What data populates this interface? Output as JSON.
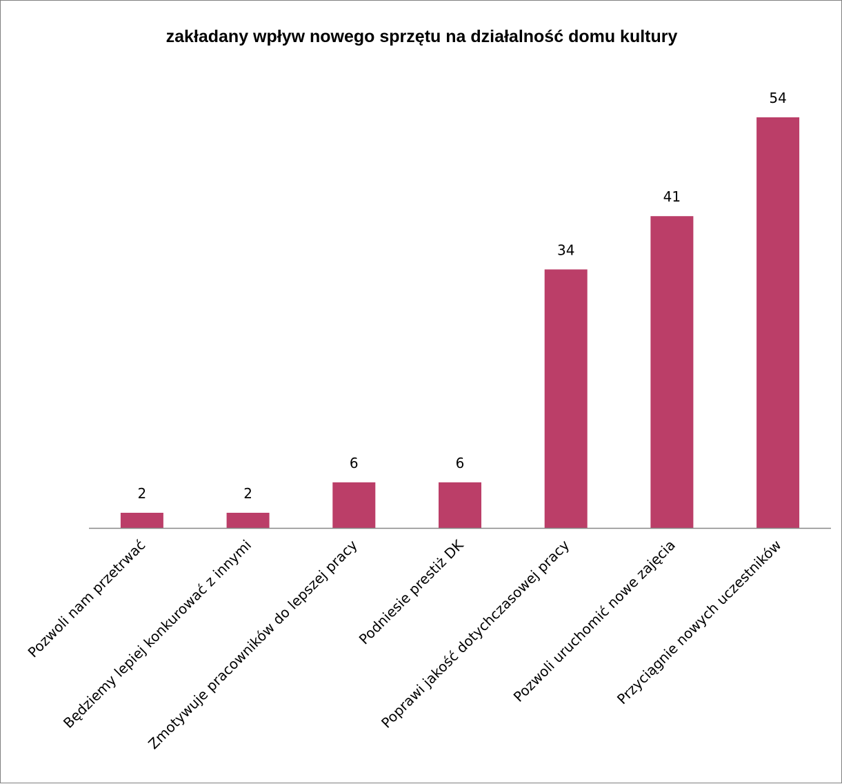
{
  "chart_data": {
    "type": "bar",
    "title": "zakładany wpływ nowego sprzętu na działalność domu kultury",
    "xlabel": "",
    "ylabel": "",
    "categories": [
      "Pozwoli nam przetrwać",
      "Będziemy lepiej konkurować z innymi",
      "Zmotywuje pracowników do lepszej pracy",
      "Podniesie prestiż DK",
      "Poprawi jakość dotychczasowej pracy",
      "Pozwoli uruchomić nowe zajęcia",
      "Przyciągnie nowych uczestników"
    ],
    "values": [
      2,
      2,
      6,
      6,
      34,
      41,
      54
    ],
    "ylim": [
      0,
      54
    ],
    "grid": false,
    "legend": "none",
    "data_labels": true,
    "bar_color": "#bb3e68"
  }
}
